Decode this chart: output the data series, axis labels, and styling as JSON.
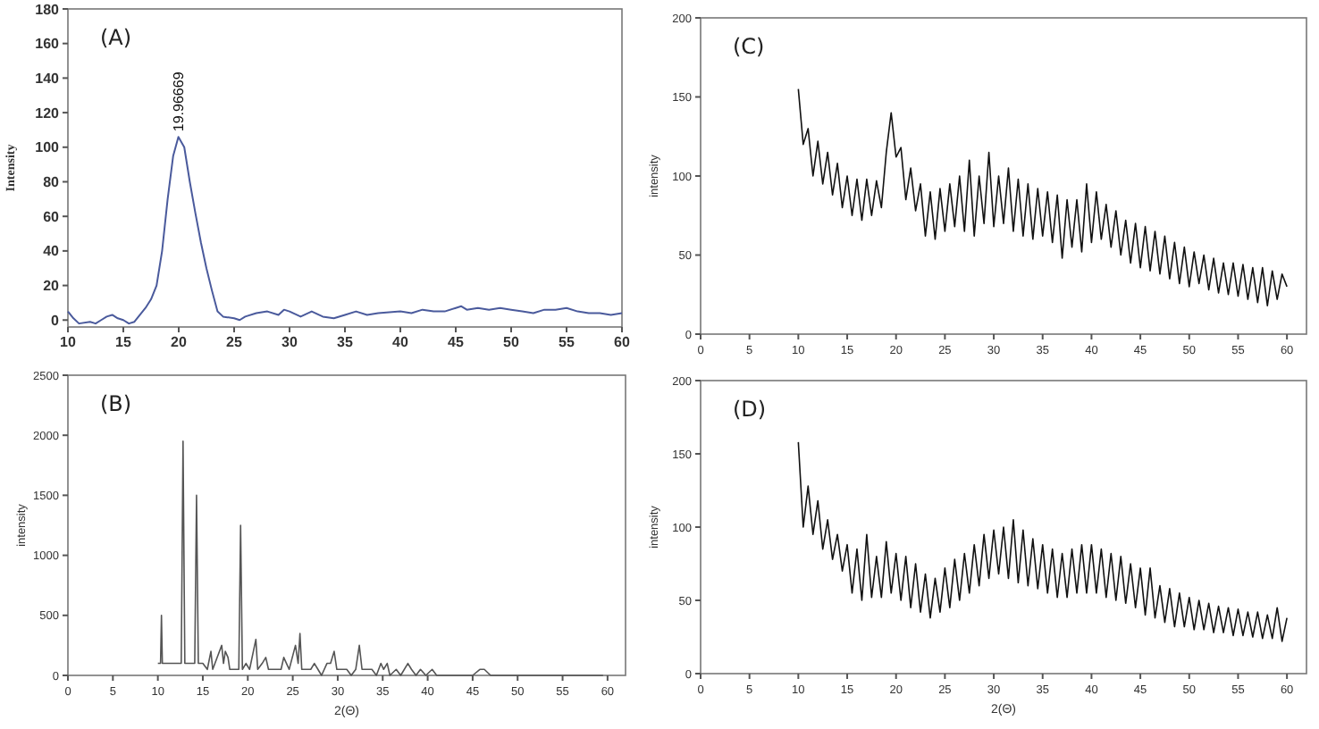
{
  "chart_data": [
    {
      "type": "line",
      "ylabel": "Intensity",
      "annotations": [
        "(A)",
        {
          "text": "19.96669",
          "x": 19.97,
          "y": 106
        }
      ],
      "color": "#4a5a9c",
      "x": [
        10,
        10.5,
        11,
        12,
        12.5,
        13,
        13.5,
        14,
        14.5,
        15,
        15.5,
        16,
        16.5,
        17,
        17.5,
        18,
        18.5,
        19,
        19.5,
        19.97,
        20.5,
        21,
        21.5,
        22,
        22.5,
        23,
        23.5,
        24,
        25,
        25.5,
        26,
        27,
        28,
        29,
        29.5,
        30,
        31,
        32,
        33,
        34,
        35,
        36,
        37,
        38,
        40,
        41,
        42,
        43,
        44,
        45,
        45.5,
        46,
        47,
        48,
        49,
        50,
        51,
        52,
        53,
        54,
        55,
        56,
        57,
        58,
        59,
        60
      ],
      "values": [
        5,
        1,
        -2,
        -1,
        -2,
        0,
        2,
        3,
        1,
        0,
        -2,
        -1,
        3,
        7,
        12,
        20,
        40,
        70,
        95,
        106,
        100,
        80,
        62,
        45,
        30,
        17,
        5,
        2,
        1,
        0,
        2,
        4,
        5,
        3,
        6,
        5,
        2,
        5,
        2,
        1,
        3,
        5,
        3,
        4,
        5,
        4,
        6,
        5,
        5,
        7,
        8,
        6,
        7,
        6,
        7,
        6,
        5,
        4,
        6,
        6,
        7,
        5,
        4,
        4,
        3,
        4
      ],
      "xlim": [
        10,
        60
      ],
      "ylim": [
        -4,
        180
      ],
      "xticks": [
        10,
        15,
        20,
        25,
        30,
        35,
        40,
        45,
        50,
        55,
        60
      ],
      "yticks": [
        0,
        20,
        40,
        60,
        80,
        100,
        120,
        140,
        160,
        180
      ]
    },
    {
      "type": "line",
      "xlabel": "2(Θ)",
      "ylabel": "intensity",
      "annotations": [
        "(B)"
      ],
      "color": "#555555",
      "x": [
        10,
        10.3,
        10.4,
        10.5,
        11,
        12,
        12.6,
        12.8,
        13,
        13.5,
        14.1,
        14.3,
        14.5,
        15,
        15.5,
        15.9,
        16.1,
        16.6,
        17.1,
        17.3,
        17.5,
        17.8,
        18,
        18.5,
        19,
        19.2,
        19.4,
        19.8,
        20.2,
        20.9,
        21.1,
        21.6,
        22,
        22.3,
        22.8,
        23.3,
        23.7,
        24,
        24.3,
        24.6,
        25.3,
        25.6,
        25.8,
        26,
        26.5,
        27,
        27.4,
        27.8,
        28.2,
        28.8,
        29.2,
        29.6,
        29.9,
        30.5,
        31,
        31.5,
        32,
        32.4,
        32.7,
        33.2,
        33.8,
        34.3,
        34.8,
        35.1,
        35.5,
        35.8,
        36.5,
        37,
        37.8,
        38.2,
        38.7,
        39.2,
        39.8,
        40.5,
        41,
        42,
        43,
        44,
        45,
        45.8,
        46.3,
        47,
        48,
        49,
        50,
        52,
        54,
        56,
        58,
        59.5
      ],
      "values": [
        100,
        100,
        500,
        100,
        100,
        100,
        100,
        1950,
        100,
        100,
        100,
        1500,
        100,
        100,
        50,
        200,
        50,
        150,
        250,
        100,
        200,
        150,
        50,
        50,
        50,
        1250,
        50,
        100,
        50,
        300,
        50,
        100,
        150,
        50,
        50,
        50,
        50,
        150,
        100,
        50,
        250,
        100,
        350,
        50,
        50,
        50,
        100,
        50,
        0,
        100,
        100,
        200,
        50,
        50,
        50,
        0,
        50,
        250,
        50,
        50,
        50,
        0,
        100,
        50,
        100,
        0,
        50,
        0,
        100,
        50,
        0,
        50,
        0,
        50,
        0,
        0,
        0,
        0,
        0,
        50,
        50,
        0,
        0,
        0,
        0,
        0,
        0,
        0,
        0,
        0
      ],
      "xlim": [
        0,
        62
      ],
      "ylim": [
        0,
        2500
      ],
      "xticks": [
        0,
        5,
        10,
        15,
        20,
        25,
        30,
        35,
        40,
        45,
        50,
        55,
        60
      ],
      "yticks": [
        0,
        500,
        1000,
        1500,
        2000,
        2500
      ]
    },
    {
      "type": "line",
      "ylabel": "intensity",
      "annotations": [
        "(C)"
      ],
      "color": "#111111",
      "x": [
        10,
        10.5,
        11,
        11.5,
        12,
        12.5,
        13,
        13.5,
        14,
        14.5,
        15,
        15.5,
        16,
        16.5,
        17,
        17.5,
        18,
        18.5,
        19,
        19.5,
        20,
        20.5,
        21,
        21.5,
        22,
        22.5,
        23,
        23.5,
        24,
        24.5,
        25,
        25.5,
        26,
        26.5,
        27,
        27.5,
        28,
        28.5,
        29,
        29.5,
        30,
        30.5,
        31,
        31.5,
        32,
        32.5,
        33,
        33.5,
        34,
        34.5,
        35,
        35.5,
        36,
        36.5,
        37,
        37.5,
        38,
        38.5,
        39,
        39.5,
        40,
        40.5,
        41,
        41.5,
        42,
        42.5,
        43,
        43.5,
        44,
        44.5,
        45,
        45.5,
        46,
        46.5,
        47,
        47.5,
        48,
        48.5,
        49,
        49.5,
        50,
        50.5,
        51,
        51.5,
        52,
        52.5,
        53,
        53.5,
        54,
        54.5,
        55,
        55.5,
        56,
        56.5,
        57,
        57.5,
        58,
        58.5,
        59,
        59.5,
        60
      ],
      "values": [
        155,
        120,
        130,
        100,
        122,
        95,
        115,
        88,
        108,
        80,
        100,
        75,
        98,
        72,
        98,
        75,
        97,
        80,
        115,
        140,
        112,
        118,
        85,
        105,
        78,
        95,
        62,
        90,
        60,
        92,
        65,
        95,
        68,
        100,
        65,
        110,
        62,
        100,
        70,
        115,
        68,
        100,
        70,
        105,
        65,
        98,
        62,
        95,
        60,
        92,
        62,
        90,
        58,
        88,
        48,
        85,
        55,
        85,
        52,
        95,
        58,
        90,
        60,
        82,
        55,
        78,
        50,
        72,
        45,
        70,
        42,
        68,
        40,
        65,
        38,
        62,
        35,
        58,
        32,
        55,
        30,
        52,
        32,
        50,
        28,
        48,
        26,
        45,
        25,
        45,
        24,
        44,
        22,
        42,
        20,
        42,
        18,
        40,
        22,
        38,
        30
      ],
      "xlim": [
        0,
        62
      ],
      "ylim": [
        0,
        200
      ],
      "xticks": [
        0,
        5,
        10,
        15,
        20,
        25,
        30,
        35,
        40,
        45,
        50,
        55,
        60
      ],
      "yticks": [
        0,
        50,
        100,
        150,
        200
      ]
    },
    {
      "type": "line",
      "xlabel": "2(Θ)",
      "ylabel": "intensity",
      "annotations": [
        "(D)"
      ],
      "color": "#111111",
      "x": [
        10,
        10.5,
        11,
        11.5,
        12,
        12.5,
        13,
        13.5,
        14,
        14.5,
        15,
        15.5,
        16,
        16.5,
        17,
        17.5,
        18,
        18.5,
        19,
        19.5,
        20,
        20.5,
        21,
        21.5,
        22,
        22.5,
        23,
        23.5,
        24,
        24.5,
        25,
        25.5,
        26,
        26.5,
        27,
        27.5,
        28,
        28.5,
        29,
        29.5,
        30,
        30.5,
        31,
        31.5,
        32,
        32.5,
        33,
        33.5,
        34,
        34.5,
        35,
        35.5,
        36,
        36.5,
        37,
        37.5,
        38,
        38.5,
        39,
        39.5,
        40,
        40.5,
        41,
        41.5,
        42,
        42.5,
        43,
        43.5,
        44,
        44.5,
        45,
        45.5,
        46,
        46.5,
        47,
        47.5,
        48,
        48.5,
        49,
        49.5,
        50,
        50.5,
        51,
        51.5,
        52,
        52.5,
        53,
        53.5,
        54,
        54.5,
        55,
        55.5,
        56,
        56.5,
        57,
        57.5,
        58,
        58.5,
        59,
        59.5,
        60
      ],
      "values": [
        158,
        100,
        128,
        95,
        118,
        85,
        105,
        78,
        95,
        70,
        88,
        55,
        85,
        50,
        95,
        52,
        80,
        52,
        90,
        55,
        82,
        50,
        80,
        45,
        75,
        42,
        68,
        38,
        65,
        42,
        72,
        45,
        78,
        50,
        82,
        55,
        88,
        60,
        95,
        65,
        98,
        68,
        100,
        65,
        105,
        62,
        98,
        60,
        92,
        58,
        88,
        55,
        85,
        52,
        82,
        52,
        85,
        55,
        88,
        55,
        88,
        55,
        85,
        52,
        82,
        50,
        80,
        48,
        75,
        45,
        72,
        40,
        72,
        38,
        60,
        35,
        58,
        32,
        55,
        32,
        52,
        30,
        50,
        30,
        48,
        28,
        46,
        28,
        45,
        26,
        44,
        26,
        42,
        25,
        42,
        24,
        40,
        24,
        45,
        22,
        38
      ],
      "xlim": [
        0,
        62
      ],
      "ylim": [
        0,
        200
      ],
      "xticks": [
        0,
        5,
        10,
        15,
        20,
        25,
        30,
        35,
        40,
        45,
        50,
        55,
        60
      ],
      "yticks": [
        0,
        50,
        100,
        150,
        200
      ]
    }
  ]
}
